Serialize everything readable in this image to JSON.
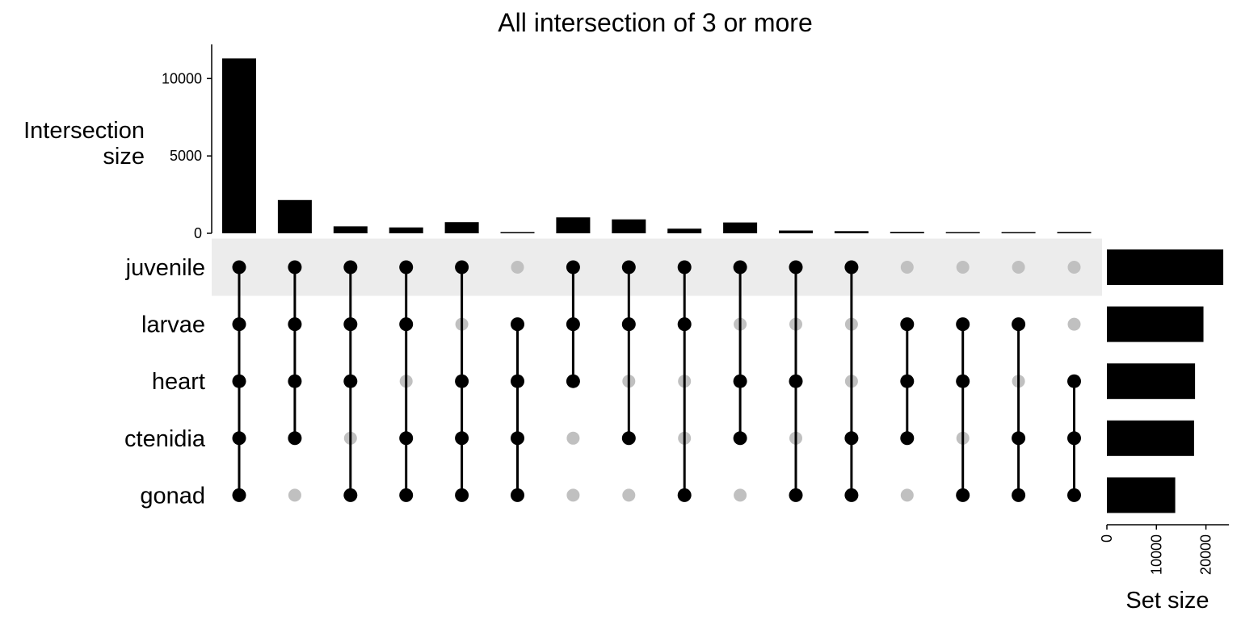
{
  "chart_data": {
    "type": "bar",
    "subtype": "upset",
    "title": "All intersection of 3 or more",
    "intersection_axis": {
      "label_lines": [
        "Intersection",
        "size"
      ],
      "ticks": [
        0,
        5000,
        10000
      ],
      "ylim": [
        0,
        12000
      ]
    },
    "set_size_axis": {
      "label": "Set size",
      "ticks": [
        0,
        10000,
        20000
      ],
      "xlim": [
        0,
        24000
      ]
    },
    "sets": [
      {
        "name": "juvenile",
        "size": 23500
      },
      {
        "name": "larvae",
        "size": 19500
      },
      {
        "name": "heart",
        "size": 17800
      },
      {
        "name": "ctenidia",
        "size": 17600
      },
      {
        "name": "gonad",
        "size": 13800
      }
    ],
    "intersections": [
      {
        "sets": [
          "juvenile",
          "larvae",
          "heart",
          "ctenidia",
          "gonad"
        ],
        "size": 11300
      },
      {
        "sets": [
          "juvenile",
          "larvae",
          "heart",
          "ctenidia"
        ],
        "size": 2150
      },
      {
        "sets": [
          "juvenile",
          "larvae",
          "heart",
          "gonad"
        ],
        "size": 450
      },
      {
        "sets": [
          "juvenile",
          "larvae",
          "ctenidia",
          "gonad"
        ],
        "size": 380
      },
      {
        "sets": [
          "juvenile",
          "heart",
          "ctenidia",
          "gonad"
        ],
        "size": 720
      },
      {
        "sets": [
          "larvae",
          "heart",
          "ctenidia",
          "gonad"
        ],
        "size": 80
      },
      {
        "sets": [
          "juvenile",
          "larvae",
          "heart"
        ],
        "size": 1030
      },
      {
        "sets": [
          "juvenile",
          "larvae",
          "ctenidia"
        ],
        "size": 900
      },
      {
        "sets": [
          "juvenile",
          "larvae",
          "gonad"
        ],
        "size": 300
      },
      {
        "sets": [
          "juvenile",
          "heart",
          "ctenidia"
        ],
        "size": 700
      },
      {
        "sets": [
          "juvenile",
          "heart",
          "gonad"
        ],
        "size": 180
      },
      {
        "sets": [
          "juvenile",
          "ctenidia",
          "gonad"
        ],
        "size": 140
      },
      {
        "sets": [
          "larvae",
          "heart",
          "ctenidia"
        ],
        "size": 90
      },
      {
        "sets": [
          "larvae",
          "heart",
          "gonad"
        ],
        "size": 50
      },
      {
        "sets": [
          "larvae",
          "ctenidia",
          "gonad"
        ],
        "size": 40
      },
      {
        "sets": [
          "heart",
          "ctenidia",
          "gonad"
        ],
        "size": 85
      }
    ],
    "colors": {
      "bar": "#000000",
      "dot_active": "#000000",
      "dot_inactive": "#c0c0c0",
      "stripe": "#ececec"
    },
    "grid": false,
    "legend": "none"
  }
}
